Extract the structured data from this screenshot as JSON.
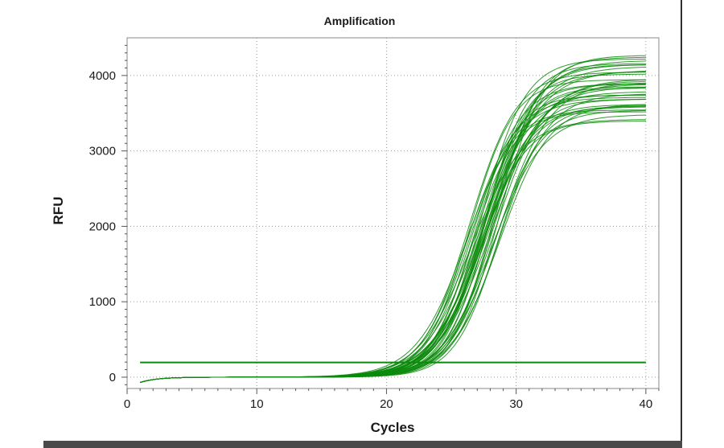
{
  "chart_data": {
    "type": "line",
    "title": "Amplification",
    "xlabel": "Cycles",
    "ylabel": "RFU",
    "xlim": [
      0,
      41
    ],
    "ylim": [
      -150,
      4500
    ],
    "x_ticks": [
      0,
      10,
      20,
      30,
      40
    ],
    "y_ticks": [
      0,
      1000,
      2000,
      3000,
      4000
    ],
    "x_tick_labels": [
      "0",
      "10",
      "20",
      "30",
      "40"
    ],
    "y_tick_labels": [
      "0",
      "1000",
      "2000",
      "3000",
      "4000"
    ],
    "grid": true,
    "line_color": "#0b8a0b",
    "threshold": {
      "x": [
        1,
        40
      ],
      "y": 195
    },
    "curve_model": {
      "cycles": [
        1,
        40
      ],
      "plateau_range": [
        3380,
        4280
      ],
      "ct_range": [
        26.2,
        28.9
      ],
      "count": 40
    }
  }
}
